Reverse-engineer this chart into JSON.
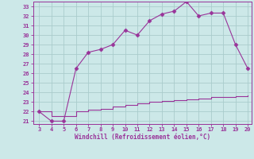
{
  "xlabel": "Windchill (Refroidissement éolien,°C)",
  "x_values": [
    3,
    4,
    5,
    6,
    7,
    8,
    9,
    10,
    11,
    12,
    13,
    14,
    15,
    16,
    17,
    18,
    19,
    20
  ],
  "y_upper": [
    22.0,
    21.0,
    21.0,
    26.5,
    28.2,
    28.5,
    29.0,
    30.5,
    30.0,
    31.5,
    32.2,
    32.5,
    33.5,
    32.0,
    32.3,
    32.3,
    29.0,
    26.5
  ],
  "y_lower_x": [
    3,
    4,
    5,
    6,
    7,
    8,
    9,
    10,
    11,
    12,
    13,
    14,
    15,
    16,
    17,
    18,
    19,
    20
  ],
  "y_lower": [
    22.0,
    21.5,
    21.5,
    22.0,
    22.2,
    22.3,
    22.5,
    22.7,
    22.9,
    23.0,
    23.1,
    23.2,
    23.3,
    23.4,
    23.5,
    23.5,
    23.6,
    23.7
  ],
  "line_color": "#993399",
  "marker": "D",
  "markersize": 2.5,
  "background_color": "#cce8e8",
  "grid_color": "#aacccc",
  "xlim": [
    3,
    20
  ],
  "ylim": [
    21,
    33
  ],
  "xticks": [
    3,
    4,
    5,
    6,
    7,
    8,
    9,
    10,
    11,
    12,
    13,
    14,
    15,
    16,
    17,
    18,
    19,
    20
  ],
  "yticks": [
    21,
    22,
    23,
    24,
    25,
    26,
    27,
    28,
    29,
    30,
    31,
    32,
    33
  ],
  "tick_color": "#993399",
  "label_color": "#993399",
  "spine_color": "#993399",
  "tick_labelsize": 5.0,
  "xlabel_fontsize": 5.5
}
